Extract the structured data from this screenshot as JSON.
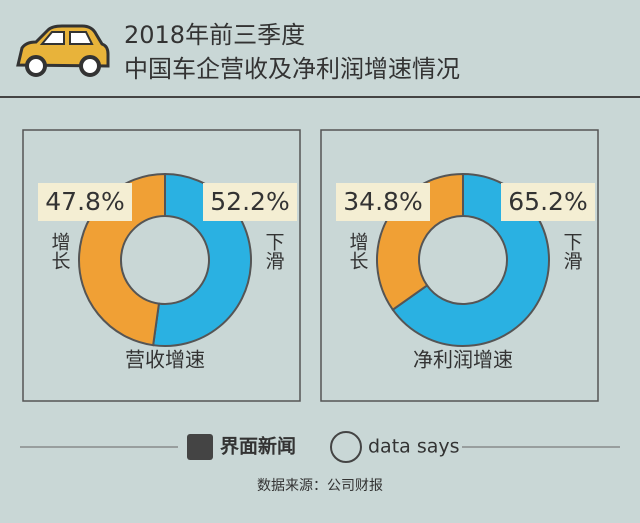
{
  "header": {
    "title": "2018年前三季度",
    "subtitle": "中国车企营收及净利润增速情况"
  },
  "chart_data": [
    {
      "type": "pie",
      "title": "营收增速",
      "categories": [
        "增长",
        "下滑"
      ],
      "values": [
        47.8,
        52.2
      ],
      "value_labels": [
        "47.8%",
        "52.2%"
      ],
      "colors": [
        "#f0a035",
        "#2ab1e2"
      ]
    },
    {
      "type": "pie",
      "title": "净利润增速",
      "categories": [
        "增长",
        "下滑"
      ],
      "values": [
        34.8,
        65.2
      ],
      "value_labels": [
        "34.8%",
        "65.2%"
      ],
      "colors": [
        "#f0a035",
        "#2ab1e2"
      ]
    }
  ],
  "footer": {
    "brand": "界面新闻",
    "brand2": "data says",
    "source": "数据来源：公司财报"
  }
}
